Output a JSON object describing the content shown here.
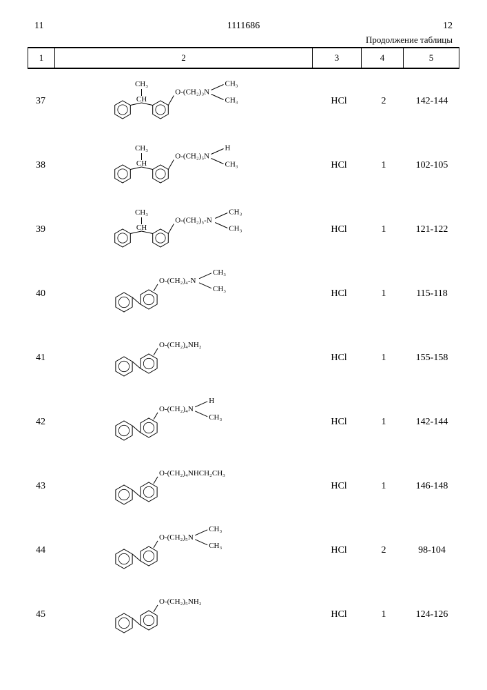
{
  "header": {
    "page_left": "11",
    "doc_number": "1111686",
    "page_right": "12",
    "continuation": "Продолжение таблицы"
  },
  "columns": {
    "c1": "1",
    "c2": "2",
    "c3": "3",
    "c4": "4",
    "c5": "5"
  },
  "rows": [
    {
      "num": "37",
      "hcl": "HCl",
      "val4": "2",
      "mp": "142-144",
      "chain": "O-(CH₂)₃N",
      "r1": "CH₃",
      "r2": "CH₃",
      "bridge": "CH",
      "bridge_sub": "CH₃",
      "type": "benzyl"
    },
    {
      "num": "38",
      "hcl": "HCl",
      "val4": "1",
      "mp": "102-105",
      "chain": "O-(CH₂)₅N",
      "r1": "H",
      "r2": "CH₃",
      "bridge": "CH",
      "bridge_sub": "CH₃",
      "type": "benzyl"
    },
    {
      "num": "39",
      "hcl": "HCl",
      "val4": "1",
      "mp": "121-122",
      "chain": "O-(CH₂)₅-N",
      "r1": "CH₃",
      "r2": "CH₃",
      "bridge": "CH",
      "bridge_sub": "CH₃",
      "type": "benzyl"
    },
    {
      "num": "40",
      "hcl": "HCl",
      "val4": "1",
      "mp": "115-118",
      "chain": "O-(CH₂)₄-N",
      "r1": "CH₃",
      "r2": "CH₃",
      "type": "biphenyl"
    },
    {
      "num": "41",
      "hcl": "HCl",
      "val4": "1",
      "mp": "155-158",
      "chain": "O-(CH₂)₄NH₂",
      "type": "biphenyl_single"
    },
    {
      "num": "42",
      "hcl": "HCl",
      "val4": "1",
      "mp": "142-144",
      "chain": "O-(CH₂)₄N",
      "r1": "H",
      "r2": "CH₃",
      "type": "biphenyl"
    },
    {
      "num": "43",
      "hcl": "HCl",
      "val4": "1",
      "mp": "146-148",
      "chain": "O-(CH₂)₄NHCH₂CH₃",
      "type": "biphenyl_single"
    },
    {
      "num": "44",
      "hcl": "HCl",
      "val4": "2",
      "mp": "98-104",
      "chain": "O-(CH₂)₅N",
      "r1": "CH₃",
      "r2": "CH₃",
      "type": "biphenyl"
    },
    {
      "num": "45",
      "hcl": "HCl",
      "val4": "1",
      "mp": "124-126",
      "chain": "O-(CH₂)₅NH₂",
      "type": "biphenyl_single"
    }
  ]
}
